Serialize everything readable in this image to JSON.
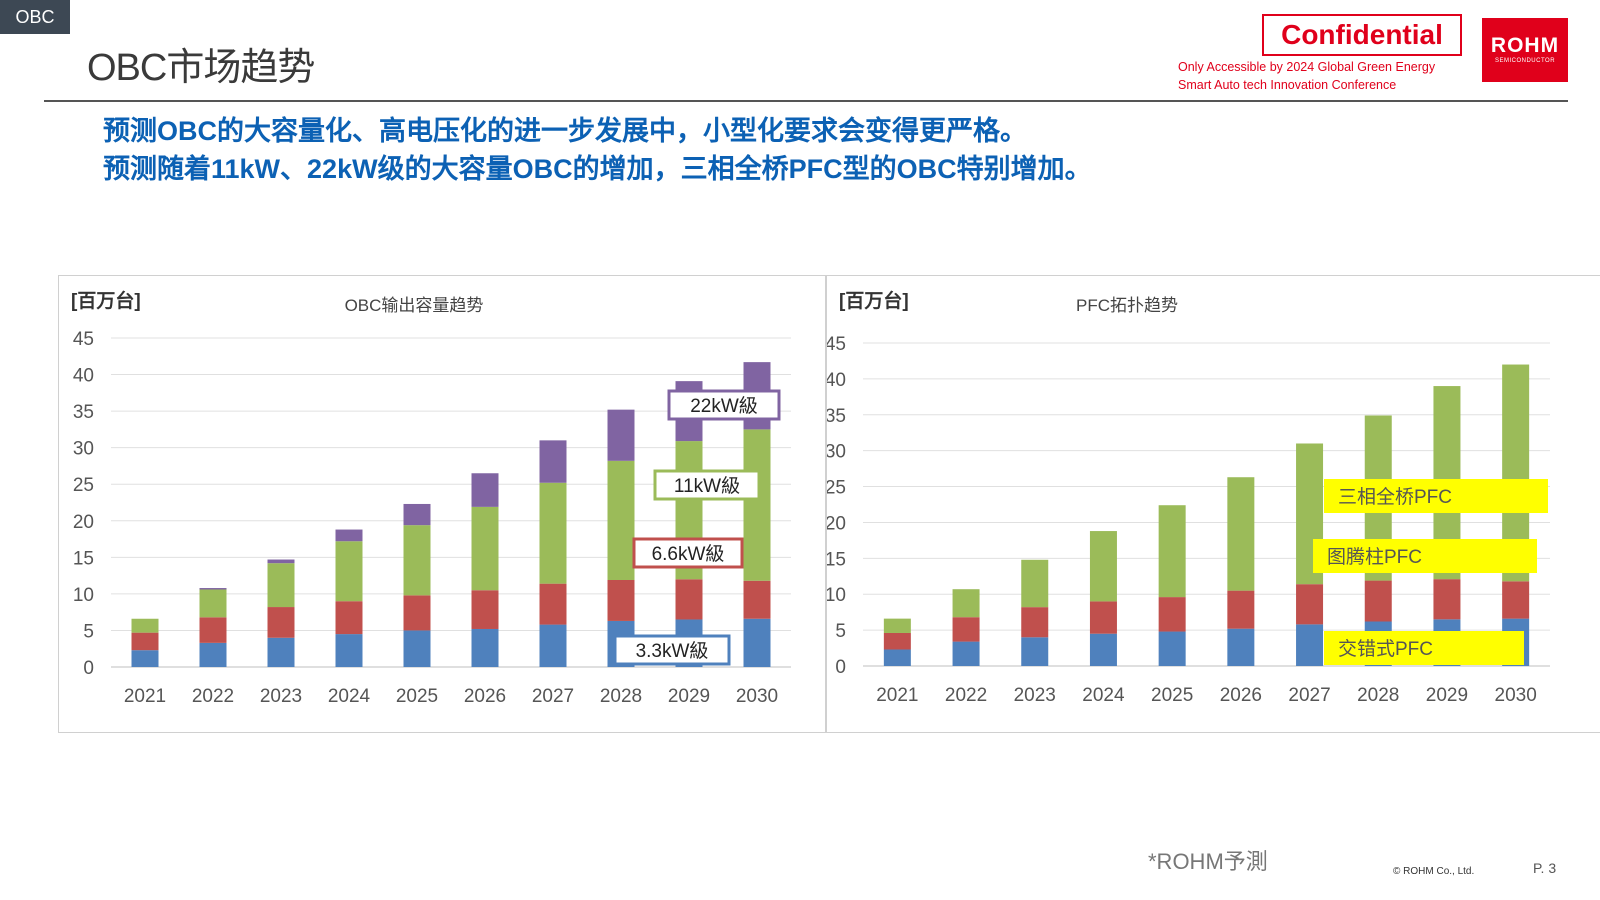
{
  "header": {
    "section_tag": "OBC",
    "title": "OBC市场趋势",
    "confidential": "Confidential",
    "confidential_note_line1": "Only Accessible by 2024 Global Green Energy",
    "confidential_note_line2": "Smart Auto tech Innovation Conference",
    "logo_main": "ROHM",
    "logo_sub": "SEMICONDUCTOR"
  },
  "headline": {
    "line1": "预测OBC的大容量化、高电压化的进一步发展中，小型化要求会变得更严格。",
    "line2": "预测随着11kW、22kW级的大容量OBC的增加，三相全桥PFC型的OBC特别增加。"
  },
  "footer": {
    "note": "*ROHM予測",
    "copyright": "© ROHM Co., Ltd.",
    "page": "P. 3"
  },
  "colors": {
    "blue": "#4f81bd",
    "red": "#c0504d",
    "green": "#9bbb59",
    "purple": "#8064a2",
    "yellow": "#ffff00",
    "headline": "#0c61b4",
    "confidential": "#e0001b"
  },
  "chart_data": [
    {
      "type": "bar",
      "stacked": true,
      "title": "OBC输出容量趋势",
      "ylabel": "[百万台]",
      "ylim": [
        0,
        45
      ],
      "yticks": [
        0,
        5,
        10,
        15,
        20,
        25,
        30,
        35,
        40,
        45
      ],
      "categories": [
        "2021",
        "2022",
        "2023",
        "2024",
        "2025",
        "2026",
        "2027",
        "2028",
        "2029",
        "2030"
      ],
      "series": [
        {
          "name": "3.3kW級",
          "color": "#4f81bd",
          "values": [
            2.3,
            3.3,
            4.0,
            4.5,
            5.0,
            5.2,
            5.8,
            6.3,
            6.5,
            6.6
          ]
        },
        {
          "name": "6.6kW級",
          "color": "#c0504d",
          "values": [
            2.4,
            3.5,
            4.2,
            4.5,
            4.8,
            5.3,
            5.6,
            5.6,
            5.5,
            5.2
          ]
        },
        {
          "name": "11kW級",
          "color": "#9bbb59",
          "values": [
            1.9,
            3.8,
            6.0,
            8.2,
            9.6,
            11.4,
            13.8,
            16.3,
            18.9,
            20.7
          ]
        },
        {
          "name": "22kW級",
          "color": "#8064a2",
          "values": [
            0.0,
            0.2,
            0.5,
            1.6,
            2.9,
            4.6,
            5.8,
            7.0,
            8.2,
            9.2
          ]
        }
      ],
      "labels": [
        "22kW級",
        "11kW級",
        "6.6kW級",
        "3.3kW級"
      ]
    },
    {
      "type": "bar",
      "stacked": true,
      "title": "PFC拓扑趋势",
      "ylabel": "[百万台]",
      "ylim": [
        0,
        45
      ],
      "yticks": [
        0,
        5,
        10,
        15,
        20,
        25,
        30,
        35,
        40,
        45
      ],
      "categories": [
        "2021",
        "2022",
        "2023",
        "2024",
        "2025",
        "2026",
        "2027",
        "2028",
        "2029",
        "2030"
      ],
      "series": [
        {
          "name": "交错式PFC",
          "color": "#4f81bd",
          "values": [
            2.3,
            3.4,
            4.0,
            4.5,
            4.8,
            5.2,
            5.8,
            6.2,
            6.5,
            6.6
          ]
        },
        {
          "name": "图腾柱PFC",
          "color": "#c0504d",
          "values": [
            2.3,
            3.4,
            4.2,
            4.5,
            4.8,
            5.3,
            5.6,
            5.7,
            5.6,
            5.2
          ]
        },
        {
          "name": "三相全桥PFC",
          "color": "#9bbb59",
          "values": [
            2.0,
            3.9,
            6.6,
            9.8,
            12.8,
            15.8,
            19.6,
            23.0,
            26.9,
            30.2
          ]
        }
      ],
      "labels": [
        "三相全桥PFC",
        "图腾柱PFC",
        "交错式PFC"
      ]
    }
  ]
}
